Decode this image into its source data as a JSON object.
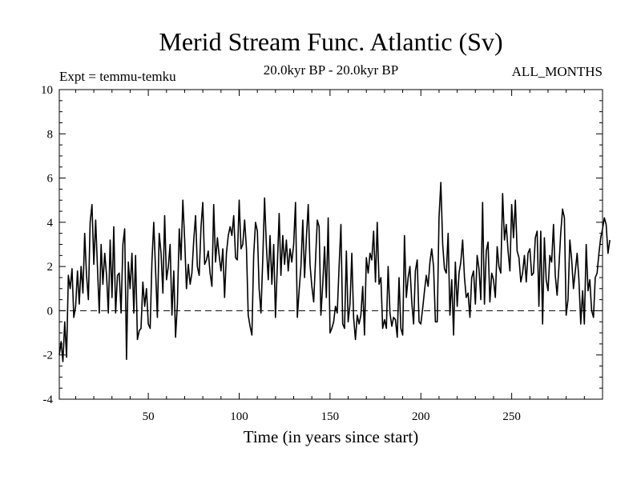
{
  "chart_data": {
    "type": "line",
    "title": "Merid Stream Func. Atlantic (Sv)",
    "subtitle_left": "Expt = temmu-temku",
    "subtitle_center": "20.0kyr BP - 20.0kyr BP",
    "subtitle_right": "ALL_MONTHS",
    "xlabel": "Time (in years since start)",
    "ylabel": "",
    "xlim": [
      1,
      300
    ],
    "ylim": [
      -4,
      10
    ],
    "xticks": [
      50,
      100,
      150,
      200,
      250
    ],
    "yticks": [
      -4,
      -2,
      0,
      2,
      4,
      6,
      8,
      10
    ],
    "reference_line": {
      "y": 0,
      "style": "dashed"
    },
    "series": [
      {
        "name": "Merid Stream Func. Atlantic",
        "x_start": 1,
        "x_step": 1,
        "values": [
          -2.0,
          -1.4,
          -2.3,
          -0.5,
          -2.1,
          1.6,
          1.0,
          1.9,
          -0.3,
          0.2,
          1.8,
          0.3,
          2.0,
          0.8,
          3.5,
          1.6,
          0.5,
          4.0,
          4.8,
          2.1,
          4.1,
          2.0,
          -0.1,
          3.0,
          1.2,
          2.6,
          1.6,
          -0.1,
          3.2,
          0.6,
          3.8,
          -0.1,
          1.6,
          1.7,
          -0.1,
          3.0,
          3.7,
          -2.2,
          2.2,
          1.0,
          2.6,
          -0.1,
          2.5,
          -1.3,
          -0.9,
          -0.8,
          1.3,
          0.2,
          1.0,
          -0.6,
          -0.8,
          2.2,
          4.0,
          1.8,
          -0.3,
          3.5,
          2.6,
          0.8,
          4.3,
          1.4,
          2.0,
          3.0,
          -0.2,
          1.8,
          -1.2,
          0.3,
          3.7,
          2.3,
          5.0,
          3.2,
          1.0,
          2.1,
          1.2,
          1.7,
          3.2,
          4.3,
          2.0,
          1.6,
          3.8,
          4.9,
          2.1,
          2.3,
          2.7,
          1.7,
          1.1,
          4.8,
          2.2,
          3.3,
          2.5,
          1.8,
          2.8,
          0.6,
          2.6,
          3.4,
          3.8,
          3.4,
          4.3,
          2.4,
          2.3,
          5.0,
          2.8,
          3.0,
          4.1,
          2.8,
          -0.2,
          -0.7,
          -1.1,
          2.5,
          4.0,
          3.6,
          1.0,
          -0.1,
          2.4,
          5.1,
          2.9,
          1.4,
          3.4,
          1.2,
          3.0,
          -0.3,
          2.0,
          4.4,
          1.6,
          3.4,
          2.1,
          3.2,
          1.8,
          2.8,
          2.2,
          3.0,
          4.9,
          -0.3,
          0.9,
          2.0,
          4.1,
          1.5,
          3.3,
          4.8,
          2.1,
          1.1,
          0.4,
          2.2,
          4.1,
          3.8,
          -0.2,
          1.2,
          2.9,
          0.6,
          4.2,
          -1.0,
          -0.8,
          -0.5,
          0.2,
          -0.1,
          2.0,
          3.9,
          -0.6,
          -0.8,
          2.7,
          -0.5,
          0.3,
          2.6,
          -0.3,
          -1.3,
          -0.2,
          -0.6,
          -0.2,
          1.1,
          -1.1,
          2.4,
          1.7,
          2.6,
          2.3,
          3.6,
          1.3,
          4.0,
          1.2,
          1.5,
          -0.8,
          -0.4,
          -0.8,
          2.0,
          -0.1,
          -0.7,
          -0.3,
          -0.4,
          -1.2,
          1.5,
          -0.8,
          -1.1,
          3.4,
          0.6,
          1.5,
          2.0,
          0.4,
          -0.6,
          1.8,
          2.3,
          -0.5,
          -0.6,
          0.1,
          0.9,
          1.6,
          1.1,
          2.2,
          2.8,
          2.0,
          -0.5,
          -0.5,
          4.2,
          5.8,
          3.0,
          1.9,
          1.7,
          3.5,
          -0.2,
          1.4,
          -1.1,
          2.2,
          0.2,
          1.7,
          2.2,
          3.2,
          1.5,
          0.6,
          0.8,
          -0.3,
          1.5,
          1.8,
          0.3,
          2.5,
          1.9,
          0.5,
          4.9,
          0.3,
          2.7,
          3.1,
          0.4,
          1.7,
          1.4,
          0.6,
          2.9,
          2.0,
          1.7,
          5.3,
          3.2,
          3.9,
          2.7,
          1.8,
          4.8,
          3.3,
          5.0,
          2.7,
          2.4,
          1.3,
          1.7,
          2.5,
          1.3,
          2.6,
          2.8,
          1.6,
          1.7,
          3.3,
          3.6,
          0.2,
          3.6,
          -0.6,
          3.3,
          1.4,
          0.9,
          2.5,
          2.2,
          3.9,
          1.6,
          0.7,
          2.0,
          3.5,
          4.6,
          4.2,
          -0.2,
          0.5,
          3.2,
          2.3,
          1.0,
          1.8,
          2.6,
          1.4,
          -0.6,
          0.9,
          -0.6,
          3.0,
          0.9,
          1.4,
          0.0,
          -0.3,
          1.5,
          1.7,
          2.6,
          3.3,
          3.7,
          4.2,
          3.9,
          2.6,
          3.2
        ],
        "color": "#000000"
      }
    ]
  }
}
